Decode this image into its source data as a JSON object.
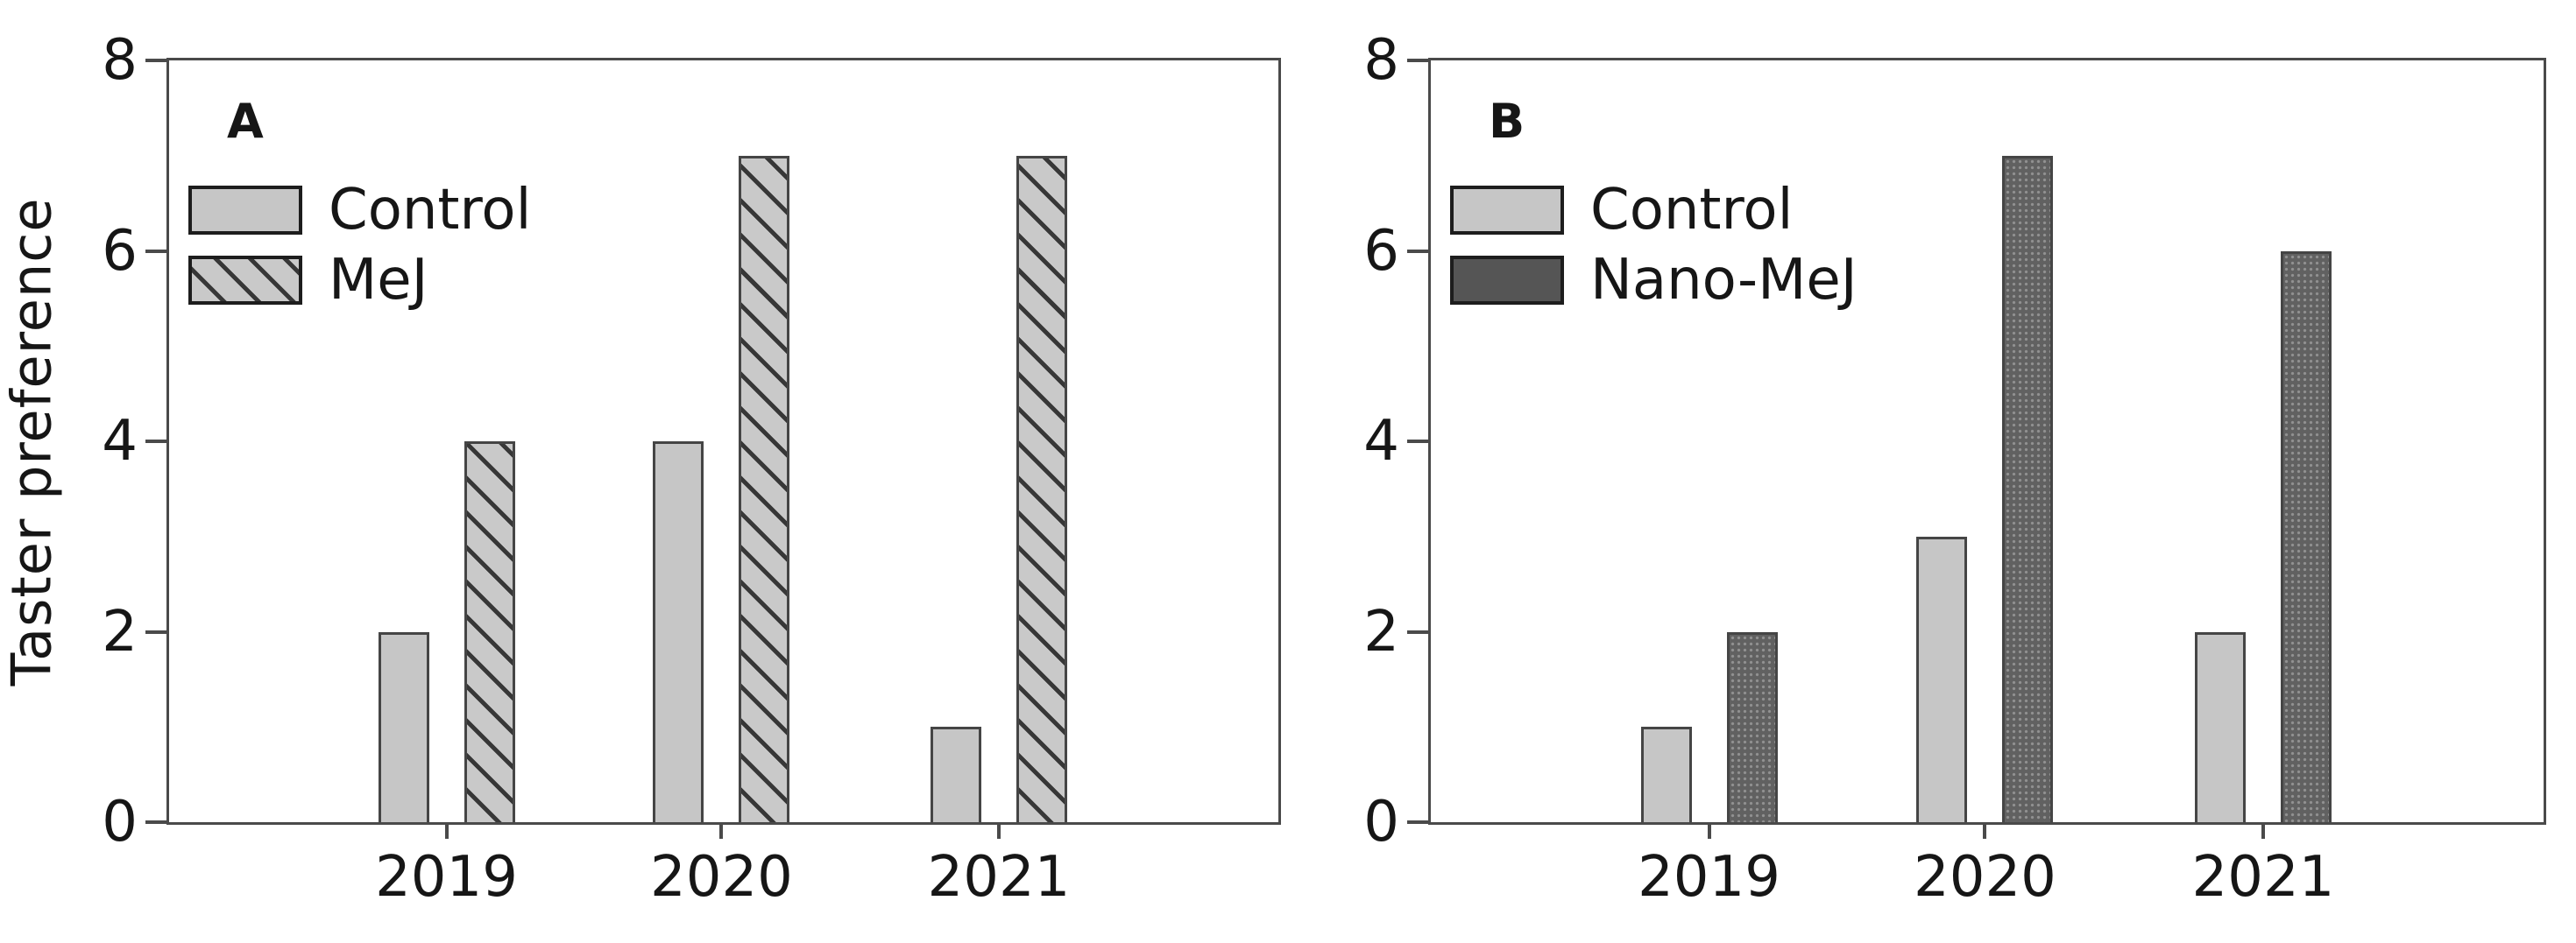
{
  "figure": {
    "background": "#ffffff",
    "text_color": "#161616",
    "axis_color": "#4a4a4a",
    "bar_border_color": "#454545"
  },
  "chart_data": [
    {
      "type": "bar",
      "panel_label": "A",
      "title": "",
      "categories": [
        "2019",
        "2020",
        "2021"
      ],
      "series": [
        {
          "name": "Control",
          "values": [
            2,
            4,
            1
          ],
          "pattern": "solid-light",
          "fill": "#c6c6c6"
        },
        {
          "name": "MeJ",
          "values": [
            4,
            7,
            7
          ],
          "pattern": "diagonal-hatch",
          "fill": "#c9c9c9",
          "hatch_color": "#373737"
        }
      ],
      "xlabel": "",
      "ylabel": "Taster preference",
      "ylim": [
        0,
        8
      ],
      "yticks": [
        8,
        6,
        4,
        2,
        0
      ],
      "grid": false,
      "legend_position": "top-left"
    },
    {
      "type": "bar",
      "panel_label": "B",
      "title": "",
      "categories": [
        "2019",
        "2020",
        "2021"
      ],
      "series": [
        {
          "name": "Control",
          "values": [
            1,
            3,
            2
          ],
          "pattern": "solid-light",
          "fill": "#c6c6c6"
        },
        {
          "name": "Nano-MeJ",
          "values": [
            2,
            7,
            6
          ],
          "pattern": "dot-mesh",
          "fill": "#616161",
          "dot_color": "#8a8a8a"
        }
      ],
      "xlabel": "",
      "ylabel": "",
      "ylim": [
        0,
        8
      ],
      "yticks": [
        8,
        6,
        4,
        2,
        0
      ],
      "grid": false,
      "legend_position": "top-left"
    }
  ]
}
